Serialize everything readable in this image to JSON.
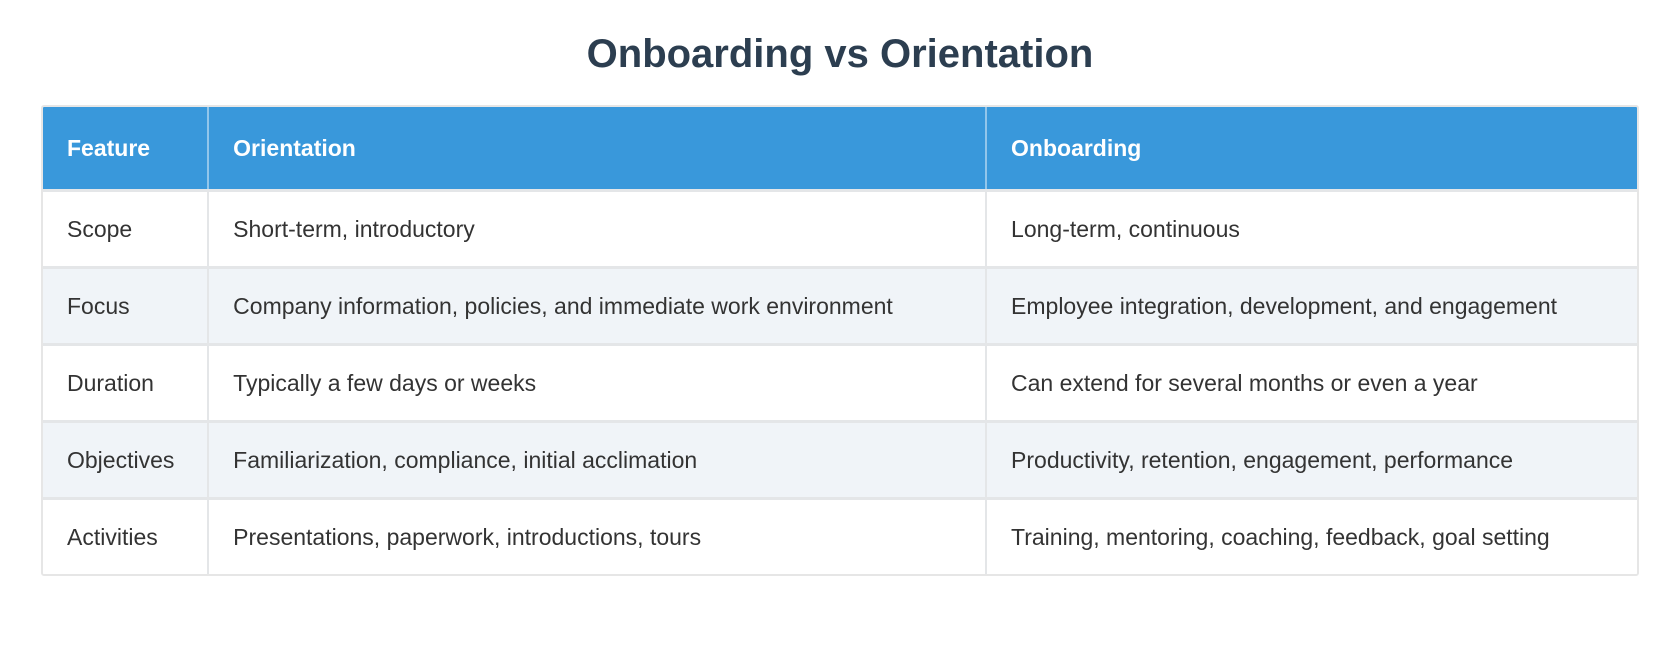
{
  "page": {
    "title": "Onboarding vs Orientation"
  },
  "colors": {
    "header_bg": "#3998db",
    "header_text": "#ffffff",
    "row_bg": "#ffffff",
    "alt_row_bg": "#f0f4f8",
    "title_color": "#2c3e50",
    "body_text": "#333333",
    "border": "#e4e6e8"
  },
  "table": {
    "columns": [
      "Feature",
      "Orientation",
      "Onboarding"
    ],
    "rows": [
      {
        "feature": "Scope",
        "orientation": "Short-term, introductory",
        "onboarding": "Long-term, continuous"
      },
      {
        "feature": "Focus",
        "orientation": "Company information, policies, and immediate work environment",
        "onboarding": "Employee integration, development, and engagement"
      },
      {
        "feature": "Duration",
        "orientation": "Typically a few days or weeks",
        "onboarding": "Can extend for several months or even a year"
      },
      {
        "feature": "Objectives",
        "orientation": "Familiarization, compliance, initial acclimation",
        "onboarding": "Productivity, retention, engagement, performance"
      },
      {
        "feature": "Activities",
        "orientation": "Presentations, paperwork, introductions, tours",
        "onboarding": "Training, mentoring, coaching, feedback, goal setting"
      }
    ]
  }
}
